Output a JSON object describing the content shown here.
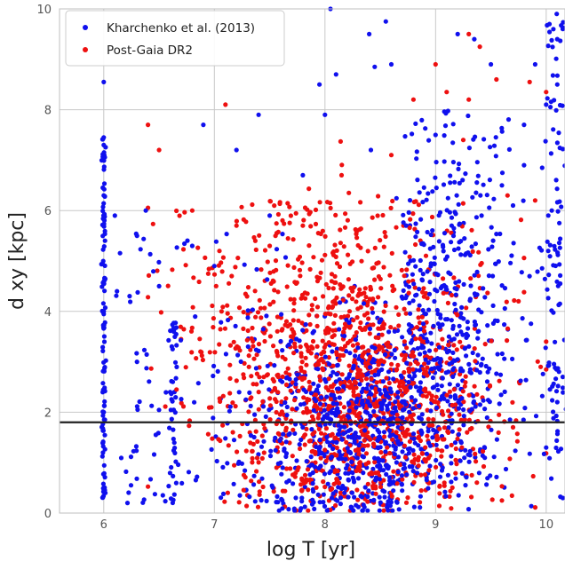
{
  "chart_data": {
    "type": "scatter",
    "xlabel": "log T [yr]",
    "ylabel": "d xy [kpc]",
    "xlim": [
      5.6,
      10.17
    ],
    "ylim": [
      0,
      10
    ],
    "xticks": [
      6,
      7,
      8,
      9,
      10
    ],
    "yticks": [
      0,
      2,
      4,
      6,
      8,
      10
    ],
    "grid": true,
    "legend_position": "top-left",
    "reference_line": {
      "y": 1.8,
      "color": "#222222"
    },
    "series": [
      {
        "name": "Kharchenko et al. (2013)",
        "color": "#1010ee"
      },
      {
        "name": "Post-Gaia DR2",
        "color": "#ee1010"
      }
    ],
    "points": {
      "blue_sample": [
        [
          6.0,
          8.55
        ],
        [
          6.0,
          7.45
        ],
        [
          6.0,
          7.3
        ],
        [
          6.0,
          6.3
        ],
        [
          6.0,
          4.0
        ],
        [
          6.0,
          2.0
        ],
        [
          6.0,
          0.5
        ],
        [
          6.1,
          5.9
        ],
        [
          6.12,
          4.4
        ],
        [
          6.3,
          5.5
        ],
        [
          6.3,
          3.0
        ],
        [
          6.38,
          6.0
        ],
        [
          6.5,
          4.5
        ],
        [
          6.6,
          2.4
        ],
        [
          6.8,
          5.3
        ],
        [
          6.9,
          7.7
        ],
        [
          7.0,
          4.9
        ],
        [
          7.2,
          7.2
        ],
        [
          7.4,
          7.9
        ],
        [
          7.5,
          5.9
        ],
        [
          7.8,
          6.7
        ],
        [
          7.95,
          8.5
        ],
        [
          8.0,
          7.9
        ],
        [
          8.05,
          10.0
        ],
        [
          8.1,
          8.7
        ],
        [
          8.4,
          9.5
        ],
        [
          8.45,
          8.85
        ],
        [
          8.55,
          9.75
        ],
        [
          8.6,
          8.9
        ],
        [
          9.0,
          7.5
        ],
        [
          9.2,
          9.5
        ],
        [
          9.35,
          9.4
        ],
        [
          9.5,
          8.9
        ],
        [
          9.8,
          7.7
        ],
        [
          9.9,
          8.9
        ],
        [
          10.0,
          8.1
        ],
        [
          10.1,
          8.5
        ],
        [
          10.1,
          9.4
        ],
        [
          10.15,
          9.6
        ],
        [
          9.6,
          6.5
        ],
        [
          9.7,
          6.1
        ],
        [
          9.8,
          6.9
        ],
        [
          10.05,
          6.0
        ],
        [
          10.1,
          2.2
        ],
        [
          10.0,
          1.3
        ]
      ],
      "red_sample": [
        [
          6.4,
          7.7
        ],
        [
          6.5,
          7.2
        ],
        [
          6.8,
          6.0
        ],
        [
          7.1,
          8.1
        ],
        [
          7.2,
          5.7
        ],
        [
          7.5,
          5.3
        ],
        [
          7.8,
          5.7
        ],
        [
          8.15,
          6.7
        ],
        [
          8.6,
          7.1
        ],
        [
          8.8,
          8.2
        ],
        [
          9.0,
          8.9
        ],
        [
          9.1,
          8.35
        ],
        [
          9.3,
          9.5
        ],
        [
          9.4,
          9.25
        ],
        [
          9.55,
          8.6
        ],
        [
          9.85,
          8.55
        ],
        [
          10.0,
          8.35
        ],
        [
          9.65,
          6.3
        ],
        [
          9.9,
          6.2
        ],
        [
          9.75,
          4.2
        ],
        [
          9.95,
          2.9
        ],
        [
          9.7,
          1.7
        ],
        [
          9.6,
          0.25
        ],
        [
          9.3,
          8.2
        ],
        [
          9.25,
          7.4
        ]
      ]
    }
  }
}
